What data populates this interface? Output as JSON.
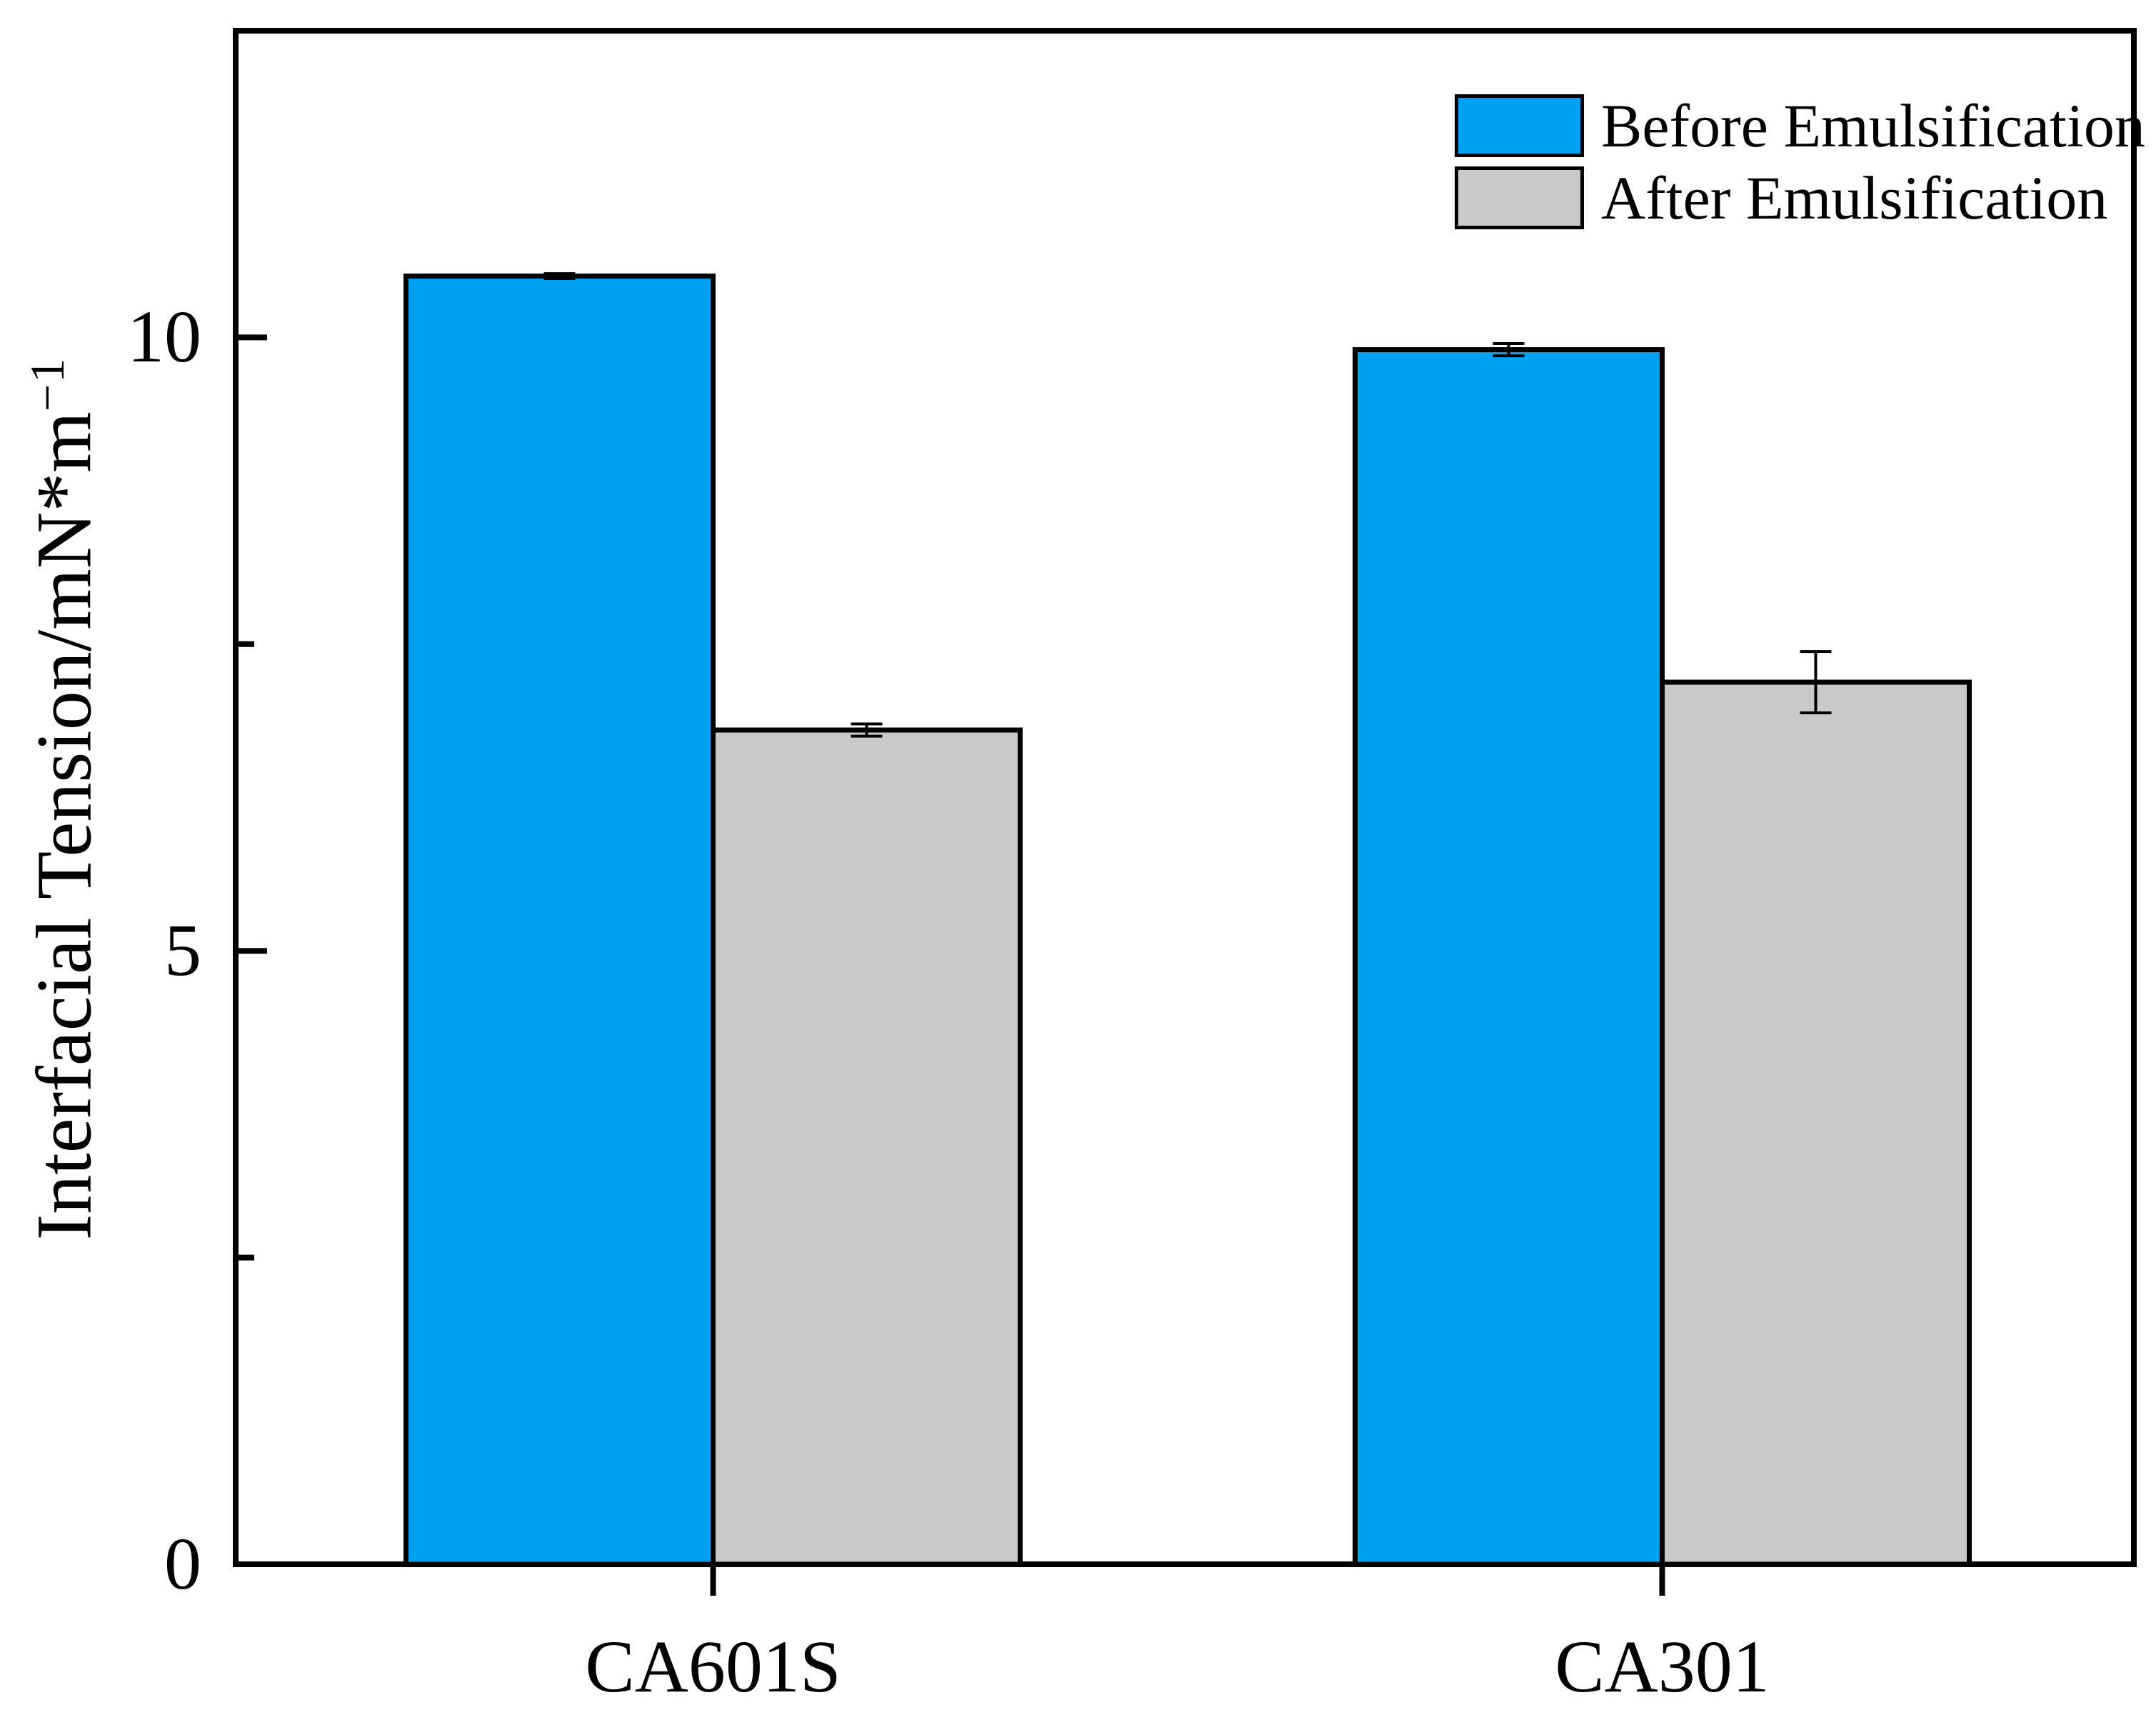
{
  "chart_data": {
    "type": "bar",
    "title": "",
    "categories": [
      "CA601S",
      "CA301"
    ],
    "series": [
      {
        "name": "Before Emulsification",
        "color": "#00A1F1",
        "values": [
          10.5,
          9.9
        ],
        "errors": [
          0.02,
          0.05
        ]
      },
      {
        "name": "After Emulsification",
        "color": "#C9C9C9",
        "values": [
          6.8,
          7.19
        ],
        "errors": [
          0.05,
          0.25
        ]
      }
    ],
    "xlabel": "",
    "ylabel": "Interfacial Tension/mN*m⁻¹",
    "ylabel_main": "Interfacial Tension/mN*m",
    "ylabel_superscript": "−1",
    "ylim": [
      0,
      12.5
    ],
    "yticks_major": [
      {
        "value": 0,
        "label": "0"
      },
      {
        "value": 5,
        "label": "5"
      },
      {
        "value": 10,
        "label": "10"
      }
    ],
    "yticks_minor": [
      2.5,
      7.5
    ],
    "grid": false,
    "legend_position": "top-right",
    "bar_edge_color": "#000000",
    "error_bar_color": "#000000",
    "frame_color": "#000000",
    "background_color": "#FFFFFF"
  }
}
